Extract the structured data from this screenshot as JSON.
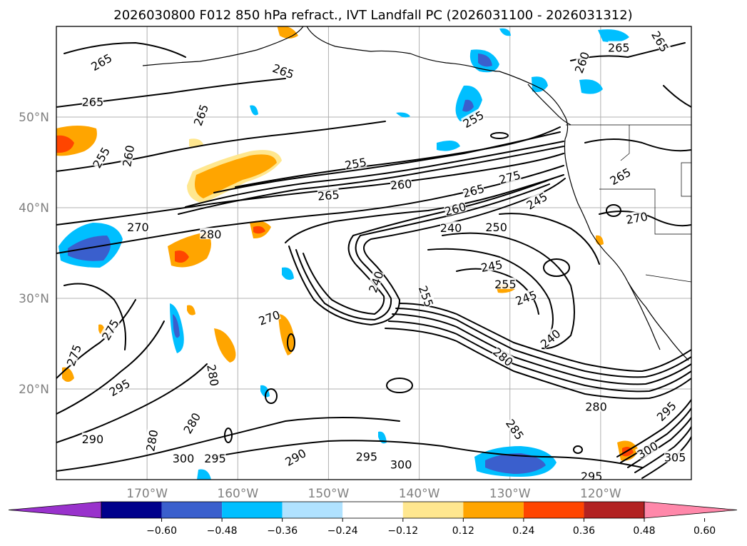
{
  "map": {
    "title": "2026030800 F012 850 hPa refract., IVT Landfall PC (2026031100 - 2026031312)",
    "lat_labels": [
      {
        "text": "50°N",
        "lat": 50
      },
      {
        "text": "40°N",
        "lat": 40
      },
      {
        "text": "30°N",
        "lat": 30
      },
      {
        "text": "20°N",
        "lat": 20
      }
    ],
    "lon_labels": [
      {
        "text": "170°W",
        "lon": -170
      },
      {
        "text": "160°W",
        "lon": -160
      },
      {
        "text": "150°W",
        "lon": -150
      },
      {
        "text": "140°W",
        "lon": -140
      },
      {
        "text": "130°W",
        "lon": -130
      },
      {
        "text": "120°W",
        "lon": -120
      }
    ],
    "lon_range": [
      -180,
      -110
    ],
    "lat_range": [
      10,
      60
    ],
    "contour_labels": [
      {
        "text": "265",
        "lon": -175,
        "lat": 56.0,
        "rot": -30
      },
      {
        "text": "265",
        "lon": -155,
        "lat": 55.0,
        "rot": 20
      },
      {
        "text": "265",
        "lon": -176,
        "lat": 51.6,
        "rot": 0
      },
      {
        "text": "265",
        "lon": -164,
        "lat": 50.2,
        "rot": -70
      },
      {
        "text": "255",
        "lon": -175,
        "lat": 45.5,
        "rot": -60
      },
      {
        "text": "260",
        "lon": -172,
        "lat": 45.7,
        "rot": -80
      },
      {
        "text": "255",
        "lon": -147,
        "lat": 44.8,
        "rot": -10
      },
      {
        "text": "260",
        "lon": -142,
        "lat": 42.5,
        "rot": -5
      },
      {
        "text": "265",
        "lon": -150,
        "lat": 41.3,
        "rot": -5
      },
      {
        "text": "265",
        "lon": -134,
        "lat": 41.8,
        "rot": -15
      },
      {
        "text": "270",
        "lon": -171,
        "lat": 37.8,
        "rot": 0
      },
      {
        "text": "280",
        "lon": -163,
        "lat": 37.0,
        "rot": 0
      },
      {
        "text": "260",
        "lon": -136,
        "lat": 39.8,
        "rot": -15
      },
      {
        "text": "240",
        "lon": -136.5,
        "lat": 37.7,
        "rot": 0
      },
      {
        "text": "250",
        "lon": -131.5,
        "lat": 37.8,
        "rot": 0
      },
      {
        "text": "275",
        "lon": -130,
        "lat": 43.3,
        "rot": -15
      },
      {
        "text": "245",
        "lon": -127,
        "lat": 40.7,
        "rot": -30
      },
      {
        "text": "255",
        "lon": -134,
        "lat": 49.7,
        "rot": -30
      },
      {
        "text": "260",
        "lon": -122,
        "lat": 56.0,
        "rot": -70
      },
      {
        "text": "265",
        "lon": -118,
        "lat": 57.6,
        "rot": 0
      },
      {
        "text": "265",
        "lon": -113.5,
        "lat": 58.3,
        "rot": 60
      },
      {
        "text": "265",
        "lon": -117.8,
        "lat": 43.4,
        "rot": -30
      },
      {
        "text": "270",
        "lon": -116,
        "lat": 38.8,
        "rot": -10
      },
      {
        "text": "245",
        "lon": -132,
        "lat": 33.5,
        "rot": -10
      },
      {
        "text": "255",
        "lon": -130.5,
        "lat": 31.5,
        "rot": 0
      },
      {
        "text": "245",
        "lon": -128.2,
        "lat": 30.0,
        "rot": -20
      },
      {
        "text": "240",
        "lon": -144.7,
        "lat": 31.8,
        "rot": -70
      },
      {
        "text": "255",
        "lon": -139.3,
        "lat": 30.2,
        "rot": 70
      },
      {
        "text": "240",
        "lon": -125.5,
        "lat": 25.5,
        "rot": -40
      },
      {
        "text": "280",
        "lon": -130.8,
        "lat": 23.5,
        "rot": 40
      },
      {
        "text": "275",
        "lon": -174,
        "lat": 26.5,
        "rot": -60
      },
      {
        "text": "275",
        "lon": -178,
        "lat": 23.7,
        "rot": -70
      },
      {
        "text": "270",
        "lon": -156.5,
        "lat": 27.8,
        "rot": -20
      },
      {
        "text": "295",
        "lon": -173,
        "lat": 20.1,
        "rot": -30
      },
      {
        "text": "280",
        "lon": -162.8,
        "lat": 21.5,
        "rot": 80
      },
      {
        "text": "280",
        "lon": -165,
        "lat": 16.2,
        "rot": -60
      },
      {
        "text": "290",
        "lon": -176,
        "lat": 14.4,
        "rot": 0
      },
      {
        "text": "280",
        "lon": -169.4,
        "lat": 14.3,
        "rot": -80
      },
      {
        "text": "300",
        "lon": -166,
        "lat": 12.3,
        "rot": 0
      },
      {
        "text": "295",
        "lon": -162.5,
        "lat": 12.3,
        "rot": 0
      },
      {
        "text": "290",
        "lon": -153.6,
        "lat": 12.4,
        "rot": -30
      },
      {
        "text": "295",
        "lon": -145.8,
        "lat": 12.5,
        "rot": 0
      },
      {
        "text": "300",
        "lon": -142,
        "lat": 11.6,
        "rot": 0
      },
      {
        "text": "285",
        "lon": -129.5,
        "lat": 15.5,
        "rot": 55
      },
      {
        "text": "280",
        "lon": -120.5,
        "lat": 18.0,
        "rot": 0
      },
      {
        "text": "295",
        "lon": -121,
        "lat": 10.3,
        "rot": 0
      },
      {
        "text": "305",
        "lon": -111.8,
        "lat": 12.4,
        "rot": 0
      },
      {
        "text": "300",
        "lon": -114.8,
        "lat": 13.2,
        "rot": -30
      },
      {
        "text": "295",
        "lon": -112.7,
        "lat": 17.5,
        "rot": -45
      }
    ]
  },
  "colorbar": {
    "tick_labels": [
      "−0.60",
      "−0.48",
      "−0.36",
      "−0.24",
      "−0.12",
      "0.12",
      "0.24",
      "0.36",
      "0.48",
      "0.60"
    ],
    "colors": [
      "#9932cc",
      "#00008b",
      "#3a5fcd",
      "#00bfff",
      "#b0e2ff",
      "#ffffff",
      "#ffe78f",
      "#ffa500",
      "#ff4500",
      "#b22222",
      "#ff88aa"
    ],
    "extend": "both"
  },
  "colors": {
    "gridline": "#b0b0b0",
    "tick_text": "#808080",
    "contour": "#000000"
  }
}
